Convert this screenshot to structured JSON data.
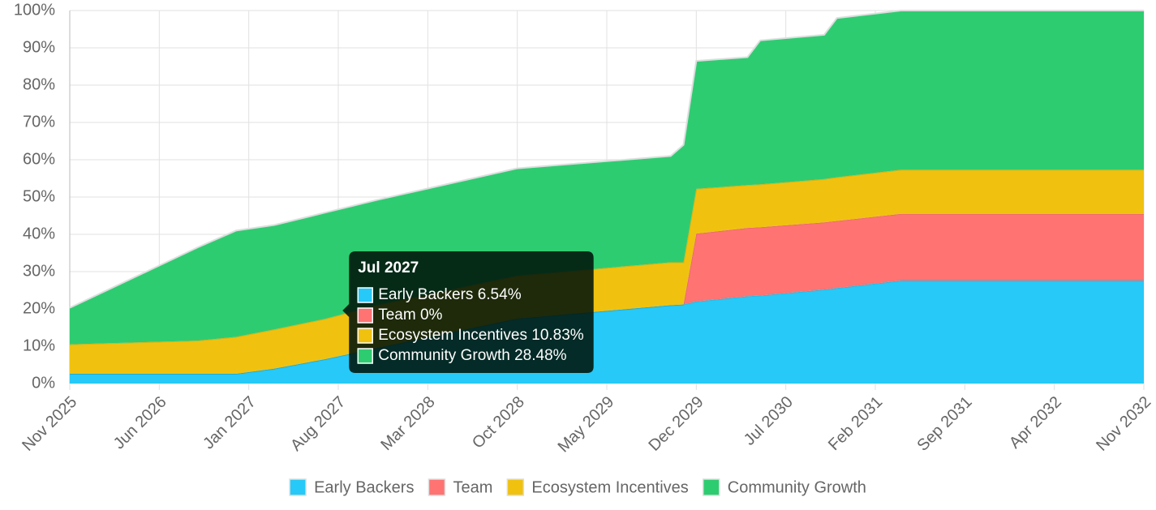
{
  "chart_data": {
    "type": "stacked-area",
    "x": [
      "Nov 2025",
      "Sep 2026",
      "Dec 2026",
      "Mar 2027",
      "Jul 2027",
      "Nov 2027",
      "Oct 2028",
      "Oct 2029",
      "Nov 2029",
      "Dec 2029",
      "Apr 2030",
      "May 2030",
      "Oct 2030",
      "Nov 2030",
      "Apr 2031",
      "Nov 2032"
    ],
    "series": [
      {
        "name": "Early Backers",
        "color": "#26c9f7",
        "values": [
          2.6,
          2.6,
          2.6,
          4,
          6.54,
          9.5,
          17.4,
          21,
          21.2,
          22,
          23.4,
          23.6,
          25.2,
          25.6,
          27.6,
          27.6
        ]
      },
      {
        "name": "Team",
        "color": "#ff7373",
        "values": [
          0,
          0,
          0,
          0,
          0,
          0,
          0,
          0,
          0,
          18.2,
          18.3,
          18.3,
          18,
          18,
          17.9,
          17.9
        ]
      },
      {
        "name": "Ecosystem Incentives",
        "color": "#f0c20f",
        "values": [
          7.9,
          8.9,
          9.9,
          10.5,
          10.83,
          11.5,
          11.5,
          11.5,
          11.3,
          12,
          11.5,
          11.5,
          11.6,
          11.7,
          11.8,
          11.8
        ]
      },
      {
        "name": "Community Growth",
        "color": "#2ecc71",
        "values": [
          9.8,
          25,
          28.5,
          28,
          28.48,
          28.2,
          28.8,
          28.5,
          31.5,
          34.3,
          34.3,
          38.6,
          38.7,
          42.7,
          42.7,
          42.7
        ]
      }
    ],
    "xlim": [
      "Nov 2025",
      "Nov 2032"
    ],
    "xticks": [
      "Nov 2025",
      "Jun 2026",
      "Jan 2027",
      "Aug 2027",
      "Mar 2028",
      "Oct 2028",
      "May 2029",
      "Dec 2029",
      "Jul 2030",
      "Feb 2031",
      "Sep 2031",
      "Apr 2032",
      "Nov 2032"
    ],
    "ylim": [
      0,
      100
    ],
    "yticks": [
      {
        "value": 0,
        "label": "0%"
      },
      {
        "value": 10,
        "label": "10%"
      },
      {
        "value": 20,
        "label": "20%"
      },
      {
        "value": 30,
        "label": "30%"
      },
      {
        "value": 40,
        "label": "40%"
      },
      {
        "value": 50,
        "label": "50%"
      },
      {
        "value": 60,
        "label": "60%"
      },
      {
        "value": 70,
        "label": "70%"
      },
      {
        "value": 80,
        "label": "80%"
      },
      {
        "value": 90,
        "label": "90%"
      },
      {
        "value": 100,
        "label": "100%"
      }
    ],
    "grid": true,
    "legend": "bottom",
    "tooltip": {
      "title": "Jul 2027",
      "items": [
        "Early Backers 6.54%",
        "Team 0%",
        "Ecosystem Incentives 10.83%",
        "Community Growth 28.48%"
      ]
    }
  }
}
